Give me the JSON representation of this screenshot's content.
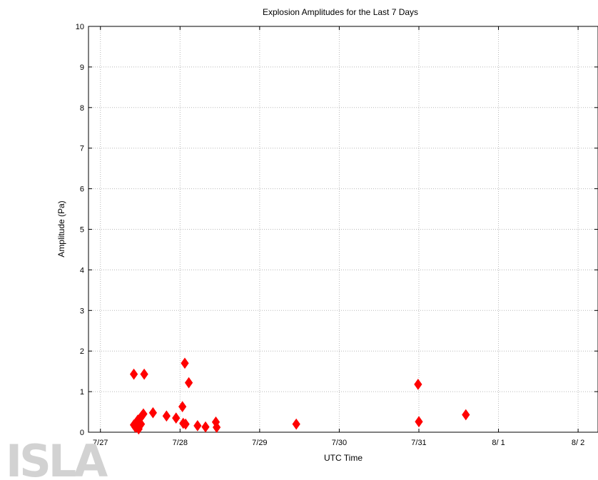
{
  "chart_data": {
    "type": "scatter",
    "title": "Explosion Amplitudes for the Last 7 Days",
    "xlabel": "UTC Time",
    "ylabel": "Amplitude (Pa)",
    "xlim": [
      -0.15,
      6.25
    ],
    "ylim": [
      0,
      10
    ],
    "x_ticks": [
      {
        "value": 0,
        "label": "7/27"
      },
      {
        "value": 1,
        "label": "7/28"
      },
      {
        "value": 2,
        "label": "7/29"
      },
      {
        "value": 3,
        "label": "7/30"
      },
      {
        "value": 4,
        "label": "7/31"
      },
      {
        "value": 5,
        "label": "8/ 1"
      },
      {
        "value": 6,
        "label": "8/ 2"
      }
    ],
    "y_ticks": [
      0,
      1,
      2,
      3,
      4,
      5,
      6,
      7,
      8,
      9,
      10
    ],
    "grid": true,
    "marker": "diamond",
    "color": "#ff0000",
    "x_unit": "days since 7/27 00:00 UTC",
    "series": [
      {
        "points": [
          [
            0.42,
            1.43
          ],
          [
            0.55,
            1.43
          ],
          [
            0.42,
            0.18
          ],
          [
            0.44,
            0.12
          ],
          [
            0.45,
            0.22
          ],
          [
            0.47,
            0.3
          ],
          [
            0.48,
            0.08
          ],
          [
            0.49,
            0.15
          ],
          [
            0.5,
            0.35
          ],
          [
            0.51,
            0.2
          ],
          [
            0.52,
            0.4
          ],
          [
            0.54,
            0.45
          ],
          [
            0.66,
            0.48
          ],
          [
            0.83,
            0.4
          ],
          [
            0.95,
            0.35
          ],
          [
            1.03,
            0.63
          ],
          [
            1.04,
            0.22
          ],
          [
            1.06,
            1.7
          ],
          [
            1.07,
            0.2
          ],
          [
            1.11,
            1.22
          ],
          [
            1.22,
            0.16
          ],
          [
            1.32,
            0.13
          ],
          [
            1.45,
            0.25
          ],
          [
            1.46,
            0.12
          ],
          [
            2.46,
            0.2
          ],
          [
            3.99,
            1.18
          ],
          [
            4.0,
            0.26
          ],
          [
            4.59,
            0.43
          ]
        ]
      }
    ]
  },
  "watermark": "ISLA"
}
